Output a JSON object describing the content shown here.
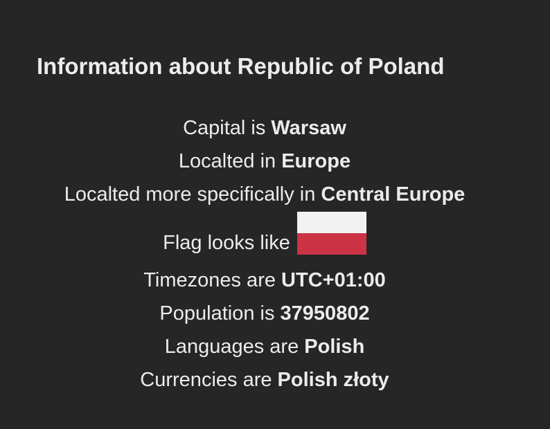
{
  "title": "Information about Republic of Poland",
  "rows": {
    "capital": {
      "label": "Capital is ",
      "value": "Warsaw"
    },
    "region": {
      "label": "Localted in ",
      "value": "Europe"
    },
    "subregion": {
      "label": "Localted more specifically in ",
      "value": "Central Europe"
    },
    "flag": {
      "label": "Flag looks like",
      "colors": [
        "#f2f2f2",
        "#cc3345"
      ]
    },
    "timezones": {
      "label": "Timezones are ",
      "value": "UTC+01:00"
    },
    "population": {
      "label": "Population is ",
      "value": "37950802"
    },
    "languages": {
      "label": "Languages are ",
      "value": "Polish"
    },
    "currencies": {
      "label": "Currencies are ",
      "value": "Polish złoty"
    }
  }
}
